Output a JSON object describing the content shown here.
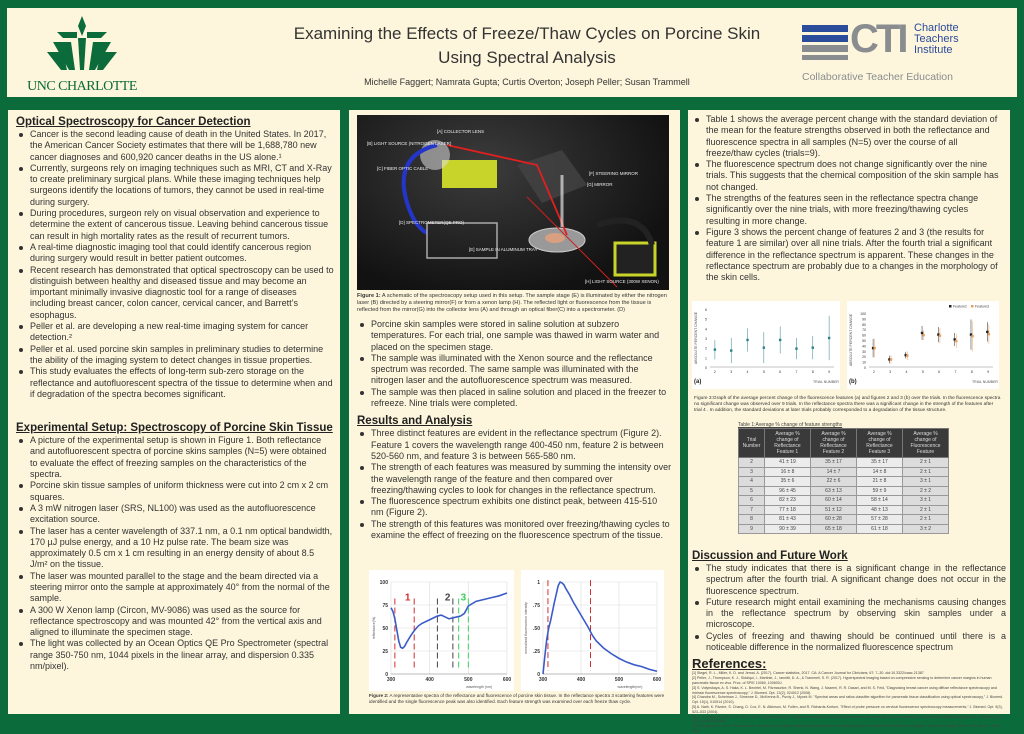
{
  "header": {
    "title_line1": "Examining the Effects of Freeze/Thaw Cycles on Porcine Skin",
    "title_line2": "Using Spectral Analysis",
    "authors": "Michelle Faggert; Namrata Gupta; Curtis Overton; Joseph Peller; Susan Trammell",
    "unc_logo_text": "UNC CHARLOTTE",
    "cti_logo_abbr": "CTI",
    "cti_logo_name": [
      "Charlotte",
      "Teachers",
      "Institute"
    ],
    "cti_tagline": "Collaborative Teacher Education",
    "colors": {
      "unc_green": "#0b6b3a",
      "cti_blue": "#2b4b9b",
      "cti_gray": "#8a8d90"
    }
  },
  "optical": {
    "heading": "Optical Spectroscopy for Cancer Detection",
    "bullets": [
      "Cancer is the second leading cause of death in the United States. In 2017, the American Cancer Society estimates that there will be 1,688,780 new cancer diagnoses and 600,920 cancer deaths in the US alone.¹",
      "Currently, surgeons rely on imaging techniques such as MRI, CT and X-Ray to create preliminary surgical  plans. While these imaging techniques help surgeons identify the locations of tumors, they cannot be used in real-time during surgery.",
      "During procedures, surgeon rely on visual observation and experience to determine the extent of cancerous tissue. Leaving behind cancerous tissue can result in high mortality rates as the result of recurrent tumors.",
      "A real-time diagnostic imaging tool that could identify cancerous region during surgery would result in better patient outcomes.",
      "Recent research has demonstrated that optical spectroscopy can be used to distinguish between healthy and diseased tissue and may become an important minimally invasive diagnostic tool for a range of diseases including breast cancer, colon cancer, cervical cancer, and Barrett’s esophagus.",
      "Peller et al. are developing a new real-time imaging system for cancer detection.²",
      "Peller et al. used porcine skin samples in preliminary studies to determine the ability of the imaging system to detect changes in tissue properties.",
      "This study evaluates the effects of long-term sub-zero storage on the reflectance and autofluorescent spectra of the tissue to determine when and if degradation of the spectra becomes significant."
    ]
  },
  "setup": {
    "heading": "Experimental Setup: Spectroscopy of Porcine Skin Tissue",
    "bullets": [
      "A picture of the experimental setup is shown in Figure 1. Both reflectance and autofluorescent spectra of porcine skins samples (N=5) were obtained to evaluate the effect of freezing samples on the characteristics of the spectra.",
      "Porcine skin tissue samples of uniform thickness were cut into 2 cm x 2 cm squares.",
      "A 3 mW nitrogen laser (SRS, NL100) was used as the autofluorescence excitation source.",
      "The laser has a center wavelength of 337.1 nm, a 0.1 nm optical bandwidth, 170 µJ pulse energy, and a 10 Hz pulse rate. The beam size was approximately 0.5 cm x 1 cm resulting in an energy density of about 8.5 J/m² on the tissue.",
      "The laser was mounted parallel to the stage and the beam directed via a steering mirror onto the sample at approximately 40° from the normal of the sample.",
      "A 300 W Xenon  lamp (Circon, MV-9086) was used as the source for reflectance spectroscopy and was mounted 42° from the vertical axis and aligned to illuminate the specimen stage.",
      "The light was collected by  an Ocean Optics QE Pro Spectrometer (spectral range 350-750 nm, 1044 pixels in the linear array, and dispersion 0.335 nm/pixel)."
    ]
  },
  "figure1": {
    "labels": [
      "[A] COLLECTOR LENS",
      "[B] LIGHT SOURCE (NITROGEN LASER)",
      "[C] FIBER OPTIC CABLE",
      "[F] STEERING MIRROR",
      "[G] MIRROR",
      "[D] SPECTROMETER(QE PRO)",
      "[E] SAMPLE IN ALUMINUM TRAY",
      "[H] LIGHT SOURCE (300W XENON)"
    ],
    "caption_label": "Figure 1:",
    "caption": "A schematic of the spectroscopy setup used in this setup. The sample stage (E) is illuminated by either the nitrogen laser (B) directed by a steering mirror(F) or from a xenon lamp (H). The reflected light or fluorescence from the tissue is reflected from the mirror(G) into the collector lens (A) and through an optical fiber(C) into a spectrometer. (D)"
  },
  "procedure": {
    "bullets": [
      "Porcine skin samples were stored in saline solution at subzero temperatures.  For each trial, one sample was thawed in warm water and placed on the specimen stage.",
      " The sample was illuminated with the Xenon source and the reflectance spectrum was recorded. The same sample was illuminated with the nitrogen laser and the autofluorescence spectrum  was measured.",
      "The sample was then placed in saline solution and placed in the freezer to refreeze. Nine trials were completed."
    ]
  },
  "results": {
    "heading": "Results and Analysis",
    "bullets": [
      "Three distinct features are evident in the reflectance spectrum (Figure 2). Feature 1 covers the wavelength range 400-450 nm, feature 2 is between 520-560 nm, and feature 3 is between 565-580 nm.",
      "The strength of each features was measured by summing the intensity over the wavelength range of the feature and then compared over freezing/thawing cycles to look for changes in the reflectance spectrum.",
      "The fluorescence spectrum exhibits one distinct peak, between 415-510 nm (Figure 2).",
      "The strength of this features was monitored over freezing/thawing cycles to examine the effect of freezing on the fluorescence spectrum of the tissue."
    ]
  },
  "figure2": {
    "caption_label": "Figure 2:",
    "caption": "A representative spectra of the reflectance and fluorescence of porcine skin tissue. In the reflectance spectra 3 scattering features were identified and the single fluorescence peak was also identified. Each feature strength was examined over each freeze thaw cycle."
  },
  "right": {
    "bullets": [
      "Table 1 shows the average percent change with the standard deviation of the mean for the feature strengths observed in both the reflectance and fluorescence spectra in all samples (N=5) over the course of all freeze/thaw cycles (trials=9).",
      " The fluorescence spectrum does not change significantly over the nine trials. This suggests that the chemical composition of the skin sample has not changed.",
      "The strengths of the features seen in the reflectance spectra change significantly over the nine trials, with more freezing/thawing cycles resulting in more change.",
      "Figure 3 shows the percent change of features 2 and 3 (the results for feature 1 are similar) over all nine trials.  After the fourth trial a significant difference in the reflectance spectrum is apparent. These changes in the reflectance spectrum are probably due to a changes in the morphology of the skin cells."
    ]
  },
  "figure3": {
    "panel_a": "(a)",
    "panel_b": "(b)",
    "caption": "Figure 3:Graph of the average percent change of the fluorescence features (a) and figures 2 and 3  (b) over the trials. In the fluorescence spectra no significant change was observed over 9 trials. In the reflectance spectra there was a significant change in the strength of the features after trial 4 . In addition, the standard deviations at later trials probably corresponded to a degradation of the tissue structure."
  },
  "table1": {
    "title": "Table 1:Average % change of feature strengths",
    "headers": [
      "Trial Number",
      "Average % change of Reflectance Feature 1",
      "Average % change of Reflectance Feature 2",
      "Average % change of Reflectance Feature 3",
      "Average % change of Fluorescence Feature"
    ],
    "rows": [
      [
        "2",
        "41 ± 19",
        "35 ± 17",
        "35 ± 17",
        "2 ± 1"
      ],
      [
        "3",
        "16 ± 8",
        "14 ± 7",
        "14 ± 8",
        "2 ± 1"
      ],
      [
        "4",
        "35 ± 6",
        "22 ± 6",
        "21 ± 8",
        "3 ± 1"
      ],
      [
        "5",
        "96 ± 45",
        "63 ± 13",
        "59 ± 9",
        "2 ± 2"
      ],
      [
        "6",
        "82 ± 23",
        "60 ± 14",
        "58 ± 14",
        "3 ± 1"
      ],
      [
        "7",
        "77 ± 18",
        "51 ± 12",
        "48 ± 13",
        "2 ± 1"
      ],
      [
        "8",
        "81 ± 43",
        "60 ± 28",
        "57 ± 28",
        "2 ± 1"
      ],
      [
        "9",
        "90 ± 39",
        "65 ± 18",
        "61 ± 18",
        "3 ± 2"
      ]
    ]
  },
  "discussion": {
    "heading": "Discussion and Future Work",
    "bullets": [
      "The study indicates that there is a significant change in the reflectance spectrum after the fourth trial. A significant change does not occur in the fluorescence spectrum.",
      "Future research might entail examining the mechanisms causing changes in the reflectance spectrum by observing skin samples under a microscope.",
      "Cycles of freezing and thawing should be continued until there is a noticeable difference in the normalized fluorescence spectrum"
    ]
  },
  "references": {
    "heading": "References:",
    "items": [
      "[1] Siegel, R. L., Miller, K. D. and Jemal, A. (2017), Cancer statistics, 2017. CA: A Cancer Journal for Clinicians, 67: 7–30. doi:10.3322/caac.21387",
      "[2] Peller, J., Thompson, K. J., Siddiqui, I., Martinie, J., Iannitti, D. A., & Trammell, S. R. (2017). Hyperspectral imaging based on compressive sensing to determine cancer margins in human pancreatic tissue ex vivo. Proc. of SPIE 10060, 100600J.",
      "[3] S. Volynskaya, A. S. Haka, K. L. Bechtel, M. Fitzmaurice, R. Shenk, N. Wang, J. Nazemi, R. R. Dasari, and M. S. Feld, \"Diagnosing breast cancer using diffuse reflectance spectroscopy and intrinsic fluorescence spectroscopy,\" J. Biomed. Opt. 13(2), 024012 (2008).",
      "[4] Chandra M., Scheiman J., Simeone D., McKenna B., Purdy J., Mycek M. \"Spectral areas and ratios classifier algorithm for pancreatic tissue classification using optical spectroscopy,\" J. Biomed. Opt. 15(1), 010514 (2010).",
      "[5] A. Nath, K. Rivoire, S. Chang, D. Cox, E. N. Atkinson, M. Follen, and R. Richards-Kortum, \"Effect of probe pressure on cervical fluorescence spectroscopy measurements,\" J. Biomed. Opt. 9(3), 523–533 (2004).",
      "[6] S. K. Chang, N. Marin, M. Follen, and R. Richards-Kortum, \"Model-based analysis of clinical fluorescence spectroscopy for in vivo detection of cervical intraepithelial dysplasia,\" J. Biomed. Opt. 11(2), 024008 (2006).",
      "[7] Georgakoudi, I. et al. \"Fluorescence, reflectance, and light-scattering spectroscopy for evaluating dysplasia in patients with Barrett's esophagus,\" Gastroenterology, Volume 120, Issue 7, 1620 – 1629"
    ]
  },
  "chart_data": [
    {
      "id": "fig2a",
      "type": "line",
      "xlabel": "wavelength (nm)",
      "ylabel": "reflectance(%)",
      "xlim": [
        300,
        600
      ],
      "ylim": [
        0,
        100
      ],
      "xticks": [
        "300",
        "400",
        "500",
        "600"
      ],
      "yticks": [
        "0",
        "25",
        "50",
        "75",
        "100"
      ],
      "series": [
        {
          "name": "reflectance",
          "color": "#3a5cc8",
          "x": [
            300,
            305,
            310,
            315,
            320,
            325,
            330,
            335,
            340,
            350,
            360,
            370,
            380,
            400,
            420,
            430,
            440,
            450,
            460,
            470,
            480,
            490,
            500,
            520,
            540,
            560,
            580,
            600
          ],
          "y": [
            72,
            68,
            60,
            48,
            36,
            29,
            28,
            30,
            34,
            41,
            47,
            52,
            55,
            59,
            63,
            64,
            62,
            60,
            61,
            62,
            63,
            66,
            74,
            79,
            81,
            83,
            85,
            88
          ]
        }
      ],
      "markers": [
        {
          "x": 310,
          "color": "#d03030",
          "label": "1"
        },
        {
          "x": 360,
          "color": "#d03030"
        },
        {
          "x": 420,
          "color": "#444"
        },
        {
          "x": 460,
          "color": "#444",
          "label": "2"
        },
        {
          "x": 475,
          "color": "#3ccf5a",
          "label": "3"
        },
        {
          "x": 500,
          "color": "#3ccf5a"
        }
      ]
    },
    {
      "id": "fig2b",
      "type": "line",
      "xlabel": "wavelength(nm)",
      "ylabel": "normalized fluorescence intensity",
      "xlim": [
        300,
        600
      ],
      "ylim": [
        0,
        1
      ],
      "xticks": [
        "300",
        "400",
        "500",
        "600"
      ],
      "yticks": [
        "0",
        ".25",
        ".50",
        ".75",
        "1"
      ],
      "series": [
        {
          "name": "fluorescence",
          "color": "#3a5cc8",
          "x": [
            300,
            305,
            310,
            315,
            320,
            330,
            340,
            345,
            350,
            355,
            360,
            370,
            380,
            400,
            420,
            430,
            440,
            460,
            480,
            500,
            520,
            540,
            560,
            580,
            600
          ],
          "y": [
            0,
            0.2,
            0.38,
            0.5,
            0.58,
            0.78,
            0.96,
            1.0,
            0.99,
            0.97,
            0.93,
            0.86,
            0.78,
            0.64,
            0.5,
            0.42,
            0.36,
            0.28,
            0.22,
            0.17,
            0.13,
            0.1,
            0.08,
            0.05,
            0.03
          ]
        }
      ],
      "markers": [
        {
          "x": 313,
          "color": "#d03030"
        },
        {
          "x": 425,
          "color": "#d03030"
        }
      ]
    },
    {
      "id": "fig3a",
      "type": "scatter",
      "xlabel": "TRIAL NUMBER",
      "ylabel": "ABSOLUTE PERCENT CHANGE",
      "xlim": [
        1.7,
        9.3
      ],
      "ylim": [
        0,
        6
      ],
      "xticks": [
        "2",
        "3",
        "4",
        "5",
        "6",
        "7",
        "8",
        "9"
      ],
      "yticks": [
        "0",
        "1",
        "2",
        "3",
        "4",
        "5",
        "6"
      ],
      "series": [
        {
          "name": "Fluorescence",
          "color": "#2e7f86",
          "x": [
            2,
            3,
            4,
            5,
            6,
            7,
            8,
            9
          ],
          "y": [
            1.8,
            1.7,
            2.8,
            2.0,
            2.8,
            1.9,
            2.0,
            3.0
          ],
          "err": [
            1.0,
            1.3,
            1.2,
            1.6,
            1.4,
            1.1,
            1.2,
            2.3
          ]
        }
      ]
    },
    {
      "id": "fig3b",
      "type": "scatter",
      "xlabel": "TRIAL NUMBER",
      "ylabel": "ABSOLUTE PERCENT CHANGE",
      "xlim": [
        1.7,
        9.3
      ],
      "ylim": [
        0,
        100
      ],
      "xticks": [
        "2",
        "3",
        "4",
        "5",
        "6",
        "7",
        "8",
        "9"
      ],
      "yticks": [
        "0",
        "10",
        "20",
        "30",
        "40",
        "50",
        "60",
        "70",
        "80",
        "90",
        "100"
      ],
      "legend": "top-right",
      "series": [
        {
          "name": "Feature2",
          "color": "#222222",
          "x": [
            2,
            3,
            4,
            5,
            6,
            7,
            8,
            9
          ],
          "y": [
            35,
            14,
            22,
            63,
            60,
            51,
            60,
            65
          ],
          "err": [
            17,
            7,
            6,
            13,
            14,
            12,
            28,
            18
          ]
        },
        {
          "name": "Feature3",
          "color": "#e8a060",
          "x": [
            2,
            3,
            4,
            5,
            6,
            7,
            8,
            9
          ],
          "y": [
            35,
            14,
            21,
            59,
            58,
            48,
            57,
            61
          ],
          "err": [
            17,
            8,
            8,
            9,
            14,
            13,
            28,
            18
          ]
        }
      ]
    }
  ]
}
